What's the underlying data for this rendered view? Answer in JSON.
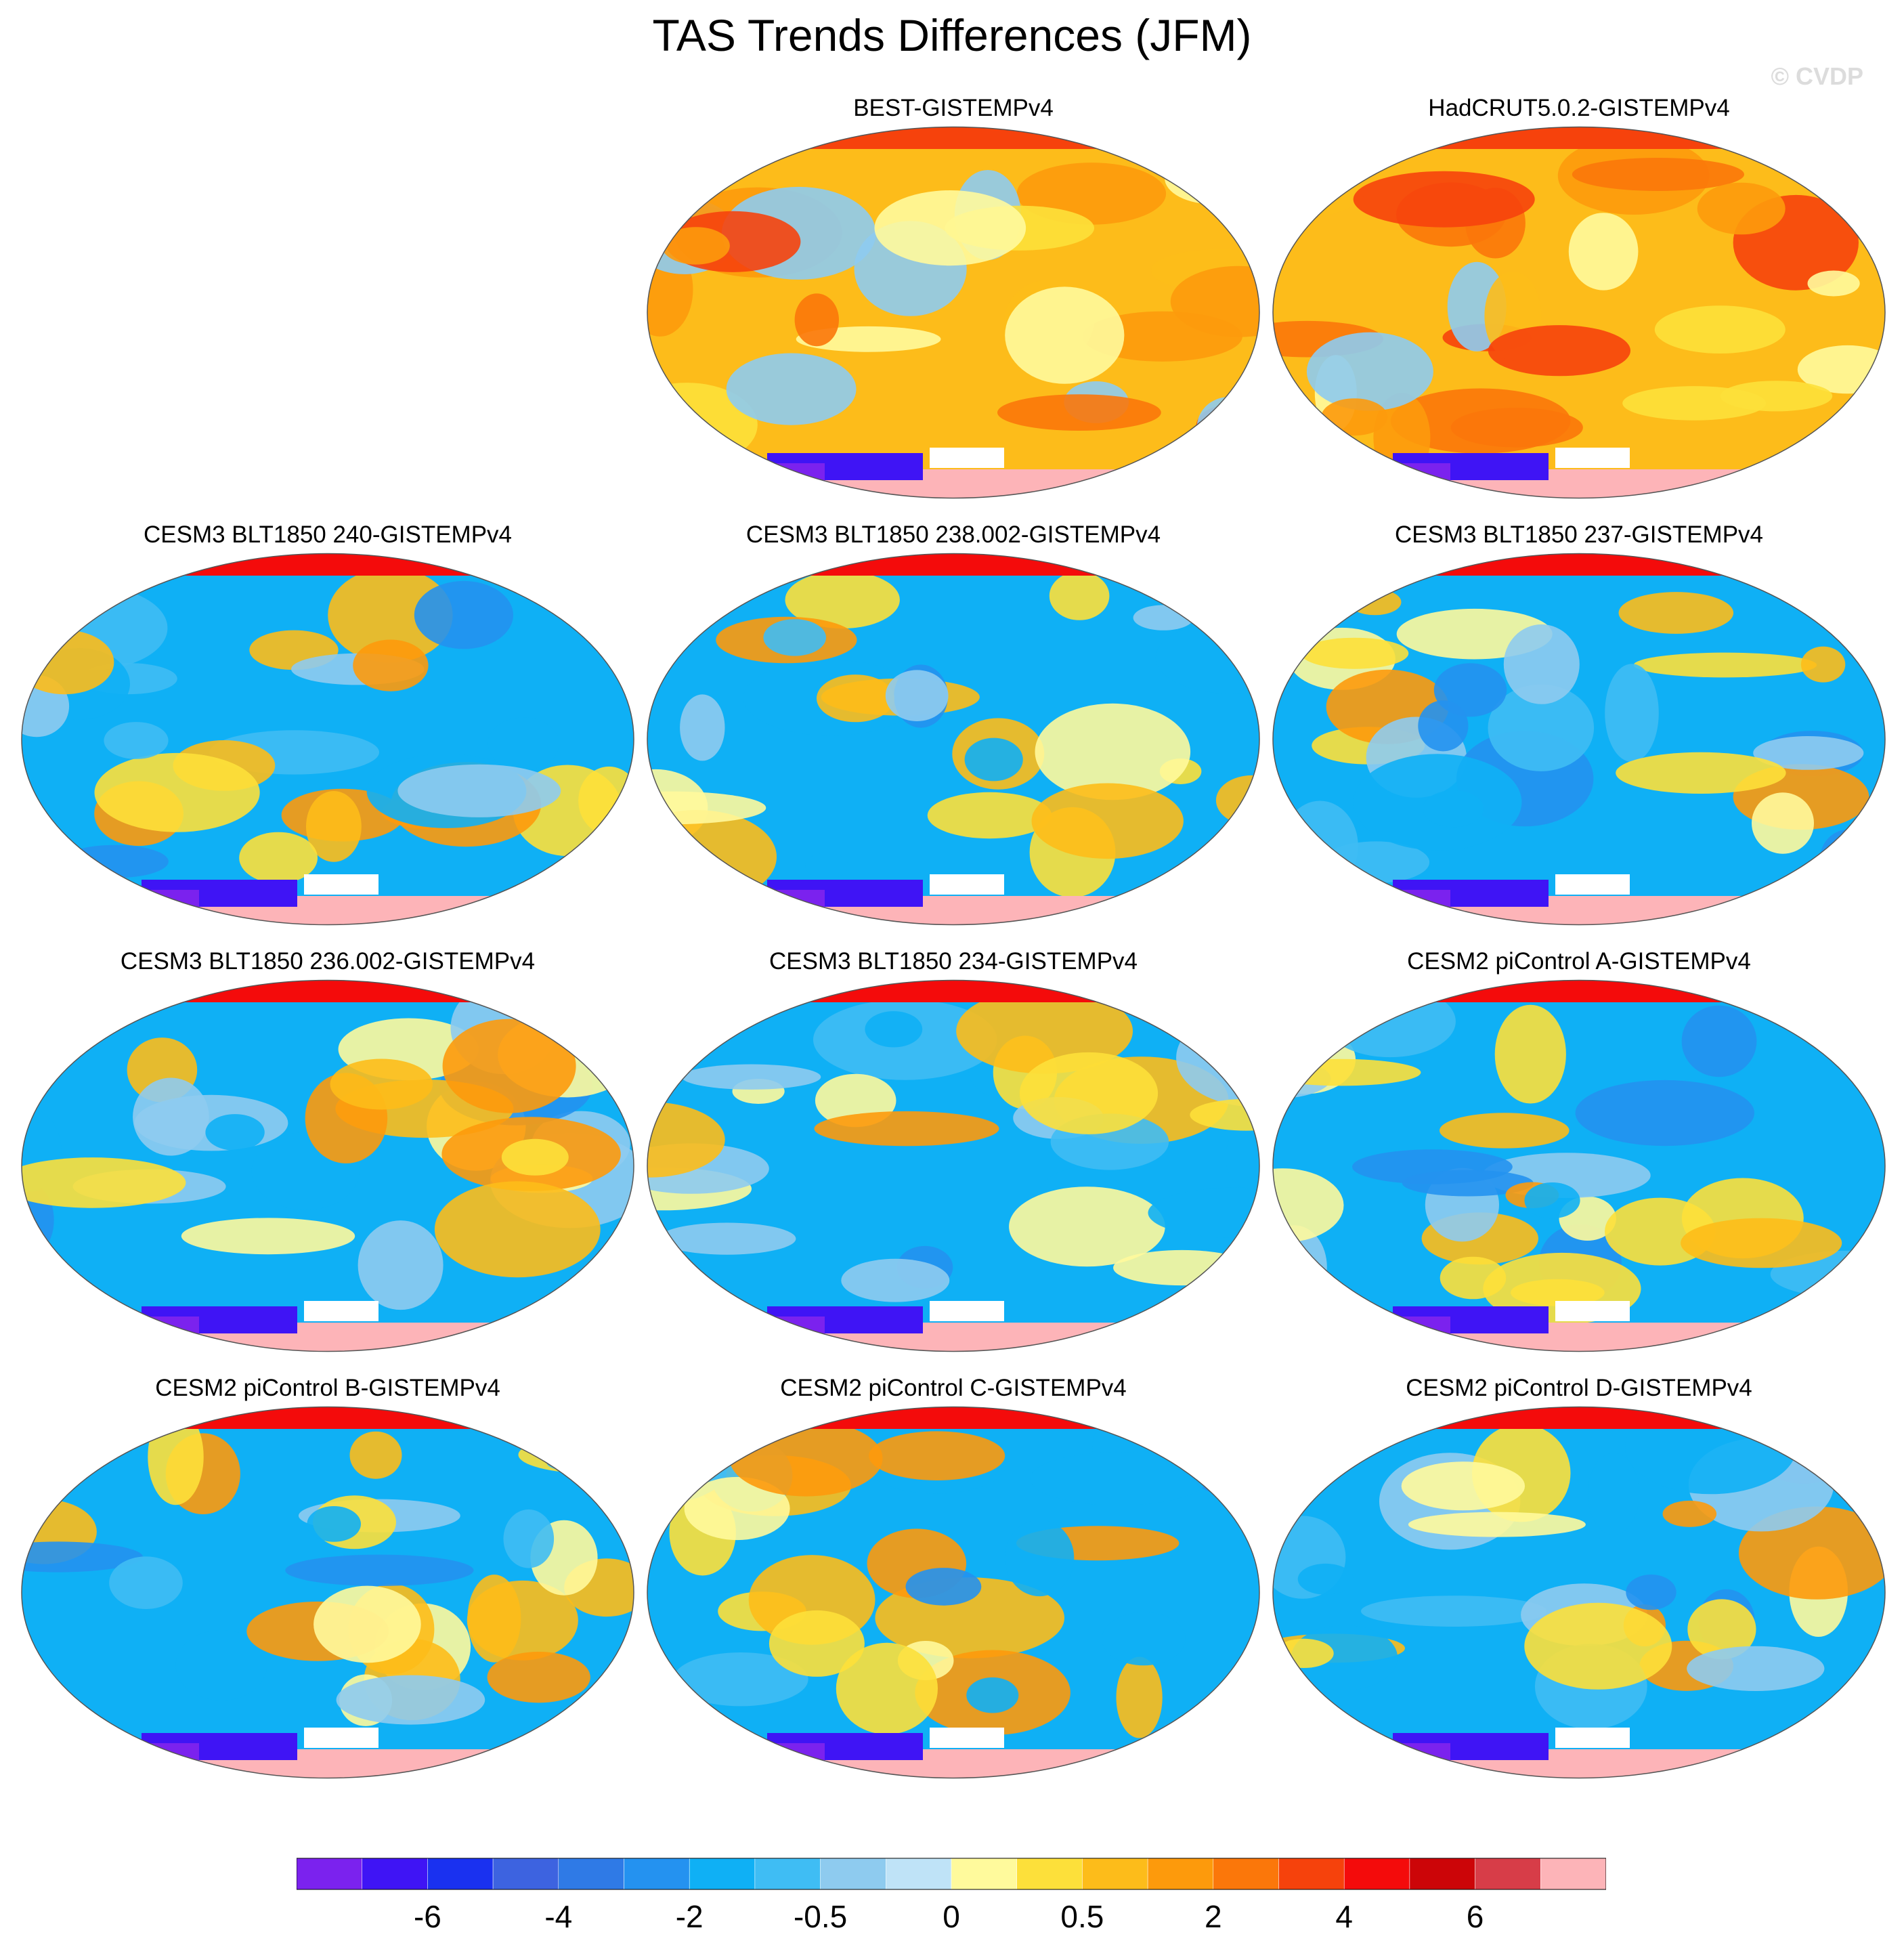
{
  "figure": {
    "title": "TAS Trends Differences (JFM)",
    "watermark": "© CVDP"
  },
  "chart_data": [
    {
      "type": "heatmap",
      "title": "BEST-GISTEMPv4",
      "projection": "robinson",
      "dominant_sign": "positive"
    },
    {
      "type": "heatmap",
      "title": "HadCRUT5.0.2-GISTEMPv4",
      "projection": "robinson",
      "dominant_sign": "positive"
    },
    {
      "type": "heatmap",
      "title": "CESM3 BLT1850 240-GISTEMPv4",
      "projection": "robinson",
      "dominant_sign": "negative"
    },
    {
      "type": "heatmap",
      "title": "CESM3 BLT1850 238.002-GISTEMPv4",
      "projection": "robinson",
      "dominant_sign": "negative"
    },
    {
      "type": "heatmap",
      "title": "CESM3 BLT1850 237-GISTEMPv4",
      "projection": "robinson",
      "dominant_sign": "negative"
    },
    {
      "type": "heatmap",
      "title": "CESM3 BLT1850 236.002-GISTEMPv4",
      "projection": "robinson",
      "dominant_sign": "negative"
    },
    {
      "type": "heatmap",
      "title": "CESM3 BLT1850 234-GISTEMPv4",
      "projection": "robinson",
      "dominant_sign": "negative"
    },
    {
      "type": "heatmap",
      "title": "CESM2 piControl A-GISTEMPv4",
      "projection": "robinson",
      "dominant_sign": "negative"
    },
    {
      "type": "heatmap",
      "title": "CESM2 piControl B-GISTEMPv4",
      "projection": "robinson",
      "dominant_sign": "negative"
    },
    {
      "type": "heatmap",
      "title": "CESM2 piControl C-GISTEMPv4",
      "projection": "robinson",
      "dominant_sign": "negative"
    },
    {
      "type": "heatmap",
      "title": "CESM2 piControl D-GISTEMPv4",
      "projection": "robinson",
      "dominant_sign": "negative"
    }
  ],
  "colorbar": {
    "colors": [
      "#7b22ee",
      "#3f14f5",
      "#1a31f0",
      "#3d63e0",
      "#2f7ae6",
      "#2492f0",
      "#0fb0f5",
      "#3fbdf4",
      "#8ecbef",
      "#bfe3f7",
      "#fffa9c",
      "#fde03a",
      "#fdbc1a",
      "#fd9a0c",
      "#fb770a",
      "#f6420c",
      "#f40b0b",
      "#cc0508",
      "#d73d48",
      "#fdb4b8"
    ],
    "tick_labels": [
      "-6",
      "-4",
      "-2",
      "-0.5",
      "0",
      "0.5",
      "2",
      "4",
      "6"
    ]
  }
}
